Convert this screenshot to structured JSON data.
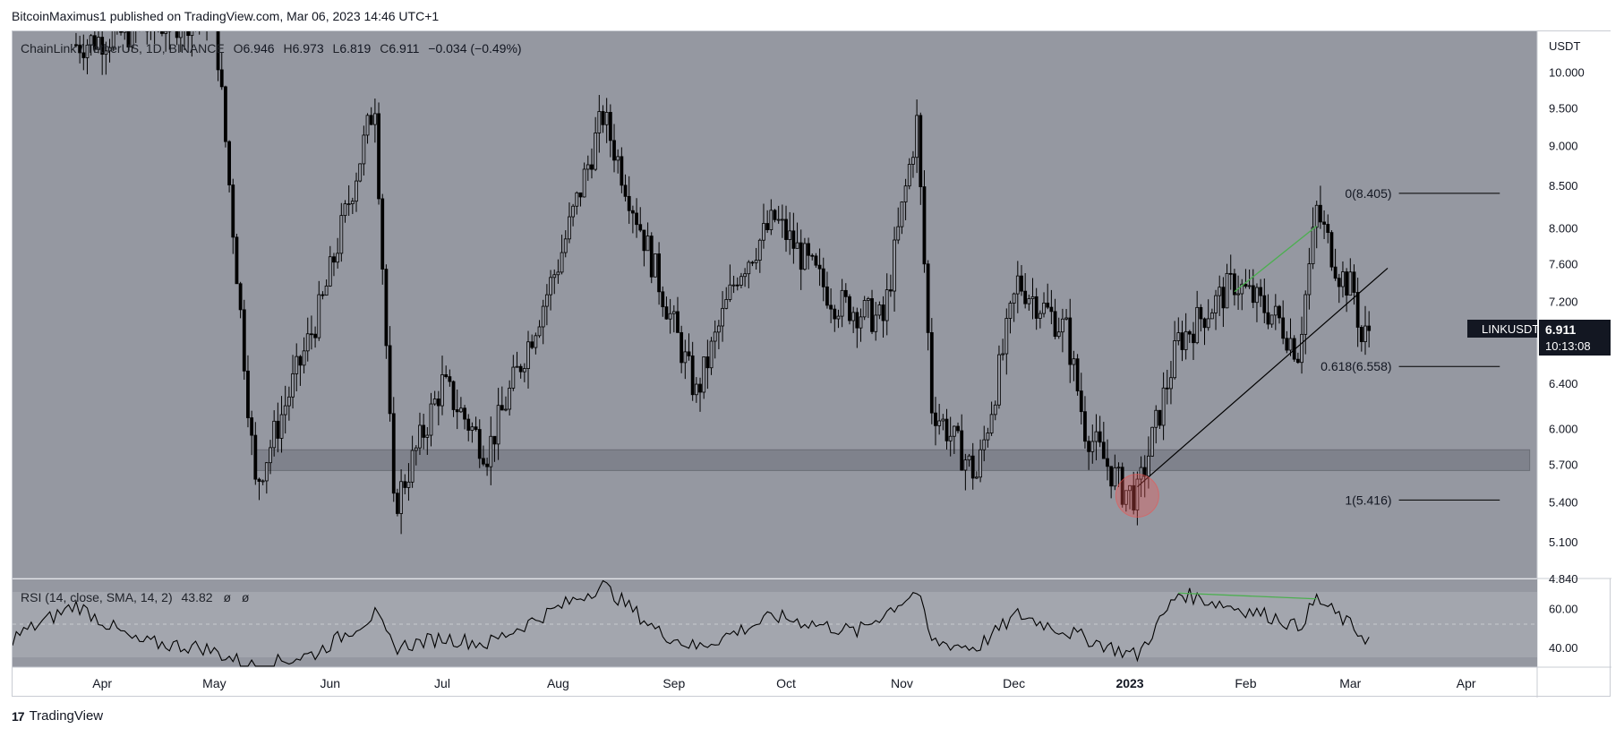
{
  "header": {
    "publisher_text": "BitcoinMaximus1 published on TradingView.com, Mar 06, 2023 14:46 UTC+1"
  },
  "legend": {
    "symbol": "ChainLink / TetherUS, 1D, BINANCE",
    "o_label": "O",
    "o_value": "6.946",
    "h_label": "H",
    "h_value": "6.973",
    "l_label": "L",
    "l_value": "6.819",
    "c_label": "C",
    "c_value": "6.911",
    "change": "−0.034 (−0.49%)"
  },
  "price_axis": {
    "currency": "USDT",
    "ticks": [
      "10.000",
      "9.500",
      "9.000",
      "8.500",
      "8.000",
      "7.600",
      "7.200",
      "6.400",
      "6.000",
      "5.700",
      "5.400",
      "5.100",
      "4.840"
    ]
  },
  "last_price_label": {
    "symbol": "LINKUSDT",
    "price": "6.911",
    "countdown": "10:13:08"
  },
  "rsi": {
    "legend": "RSI (14, close, SMA, 14, 2)",
    "value": "43.82",
    "extra1": "ø",
    "extra2": "ø",
    "ticks": [
      "60.00",
      "40.00"
    ]
  },
  "time_axis": {
    "labels": [
      "Apr",
      "May",
      "Jun",
      "Jul",
      "Aug",
      "Sep",
      "Oct",
      "Nov",
      "Dec",
      "2023",
      "Feb",
      "Mar",
      "Apr"
    ]
  },
  "fibonacci": {
    "levels": [
      {
        "label": "0(8.405)",
        "value": 8.405
      },
      {
        "label": "0.618(6.558)",
        "value": 6.558
      },
      {
        "label": "1(5.416)",
        "value": 5.416
      }
    ]
  },
  "footer": {
    "brand": "TradingView"
  },
  "colors": {
    "pane_bg": "#9598a1",
    "rsi_band": "#a3a6ae",
    "support_zone": "#787b86",
    "candle": "#000000",
    "divergence_line": "#4caf50",
    "highlight_circle": "#ef5350",
    "label_bg": "#131722"
  },
  "chart_data": {
    "type": "candlestick",
    "title": "ChainLink / TetherUS, 1D, BINANCE",
    "y_scale": "log",
    "ylim": [
      4.84,
      10.6
    ],
    "x_range": [
      "2022-03-08",
      "2023-04-20"
    ],
    "support_zone": {
      "from": "2022-05-12",
      "to": "2023-04-18",
      "low": 5.65,
      "high": 5.82
    },
    "key_points": [
      {
        "date": "2022-03-25",
        "price": 10.4
      },
      {
        "date": "2022-05-01",
        "price": 10.9
      },
      {
        "date": "2022-05-12",
        "price": 5.52
      },
      {
        "date": "2022-05-30",
        "price": 7.2
      },
      {
        "date": "2022-06-13",
        "price": 9.6
      },
      {
        "date": "2022-06-18",
        "price": 5.35
      },
      {
        "date": "2022-07-01",
        "price": 6.4
      },
      {
        "date": "2022-07-13",
        "price": 5.8
      },
      {
        "date": "2022-08-01",
        "price": 7.6
      },
      {
        "date": "2022-08-13",
        "price": 9.4
      },
      {
        "date": "2022-08-28",
        "price": 7.4
      },
      {
        "date": "2022-09-07",
        "price": 6.3
      },
      {
        "date": "2022-09-18",
        "price": 7.5
      },
      {
        "date": "2022-09-28",
        "price": 8.1
      },
      {
        "date": "2022-10-14",
        "price": 7.2
      },
      {
        "date": "2022-10-27",
        "price": 7.0
      },
      {
        "date": "2022-11-05",
        "price": 9.3
      },
      {
        "date": "2022-11-09",
        "price": 6.2
      },
      {
        "date": "2022-11-21",
        "price": 5.6
      },
      {
        "date": "2022-12-02",
        "price": 7.4
      },
      {
        "date": "2022-12-15",
        "price": 6.9
      },
      {
        "date": "2022-12-20",
        "price": 6.0
      },
      {
        "date": "2022-12-30",
        "price": 5.5
      },
      {
        "date": "2023-01-03",
        "price": 5.45
      },
      {
        "date": "2023-01-14",
        "price": 6.8
      },
      {
        "date": "2023-01-29",
        "price": 7.4
      },
      {
        "date": "2023-02-10",
        "price": 7.0
      },
      {
        "date": "2023-02-15",
        "price": 6.7
      },
      {
        "date": "2023-02-20",
        "price": 8.2
      },
      {
        "date": "2023-02-26",
        "price": 7.5
      },
      {
        "date": "2023-03-02",
        "price": 7.3
      },
      {
        "date": "2023-03-04",
        "price": 6.8
      },
      {
        "date": "2023-03-06",
        "price": 6.911
      }
    ],
    "trendline": {
      "from": {
        "date": "2023-01-03",
        "price": 5.52
      },
      "to": {
        "date": "2023-03-11",
        "price": 7.55
      }
    },
    "price_divergence": {
      "from": {
        "date": "2023-01-29",
        "price": 7.3
      },
      "to": {
        "date": "2023-02-20",
        "price": 8.02
      }
    },
    "rsi_divergence": {
      "from": {
        "date": "2023-01-14",
        "value": 68
      },
      "to": {
        "date": "2023-02-20",
        "value": 65
      }
    },
    "highlight": {
      "date": "2023-01-03",
      "price": 5.45
    },
    "rsi_series": {
      "ylim": [
        30,
        75
      ],
      "midline": 50,
      "band": [
        30,
        70
      ],
      "key_points": [
        {
          "date": "2022-03-08",
          "value": 45
        },
        {
          "date": "2022-03-25",
          "value": 62
        },
        {
          "date": "2022-04-10",
          "value": 43
        },
        {
          "date": "2022-04-28",
          "value": 40
        },
        {
          "date": "2022-05-12",
          "value": 30
        },
        {
          "date": "2022-05-28",
          "value": 37
        },
        {
          "date": "2022-06-13",
          "value": 57
        },
        {
          "date": "2022-06-18",
          "value": 40
        },
        {
          "date": "2022-07-01",
          "value": 45
        },
        {
          "date": "2022-07-13",
          "value": 42
        },
        {
          "date": "2022-08-13",
          "value": 72
        },
        {
          "date": "2022-08-28",
          "value": 48
        },
        {
          "date": "2022-09-07",
          "value": 40
        },
        {
          "date": "2022-09-28",
          "value": 56
        },
        {
          "date": "2022-10-20",
          "value": 48
        },
        {
          "date": "2022-11-05",
          "value": 69
        },
        {
          "date": "2022-11-09",
          "value": 43
        },
        {
          "date": "2022-11-21",
          "value": 40
        },
        {
          "date": "2022-12-02",
          "value": 57
        },
        {
          "date": "2022-12-20",
          "value": 45
        },
        {
          "date": "2022-12-30",
          "value": 38
        },
        {
          "date": "2023-01-03",
          "value": 36
        },
        {
          "date": "2023-01-14",
          "value": 68
        },
        {
          "date": "2023-02-10",
          "value": 55
        },
        {
          "date": "2023-02-15",
          "value": 50
        },
        {
          "date": "2023-02-20",
          "value": 65
        },
        {
          "date": "2023-03-06",
          "value": 43.82
        }
      ]
    }
  }
}
